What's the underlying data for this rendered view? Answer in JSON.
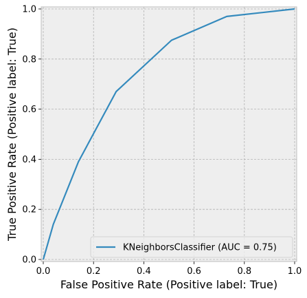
{
  "chart_data": {
    "type": "line",
    "xlabel": "False Positive Rate (Positive label: True)",
    "ylabel": "True Positive Rate (Positive label: True)",
    "xlim": [
      0,
      1
    ],
    "ylim": [
      0,
      1
    ],
    "xticks": [
      "0.0",
      "0.2",
      "0.4",
      "0.6",
      "0.8",
      "1.0"
    ],
    "yticks": [
      "0.0",
      "0.2",
      "0.4",
      "0.6",
      "0.8",
      "1.0"
    ],
    "grid": true,
    "legend_position": "lower-right",
    "series": [
      {
        "name": "KNeighborsClassifier (AUC = 0.75)",
        "color": "#348abd",
        "x": [
          0.0,
          0.04,
          0.14,
          0.29,
          0.51,
          0.73,
          1.0
        ],
        "y": [
          0.0,
          0.14,
          0.39,
          0.67,
          0.875,
          0.97,
          1.0
        ]
      }
    ],
    "colors": {
      "plot_background": "#eeeeee",
      "grid": "#b2b2b2",
      "axes_edge": "#bcbcbc"
    }
  }
}
